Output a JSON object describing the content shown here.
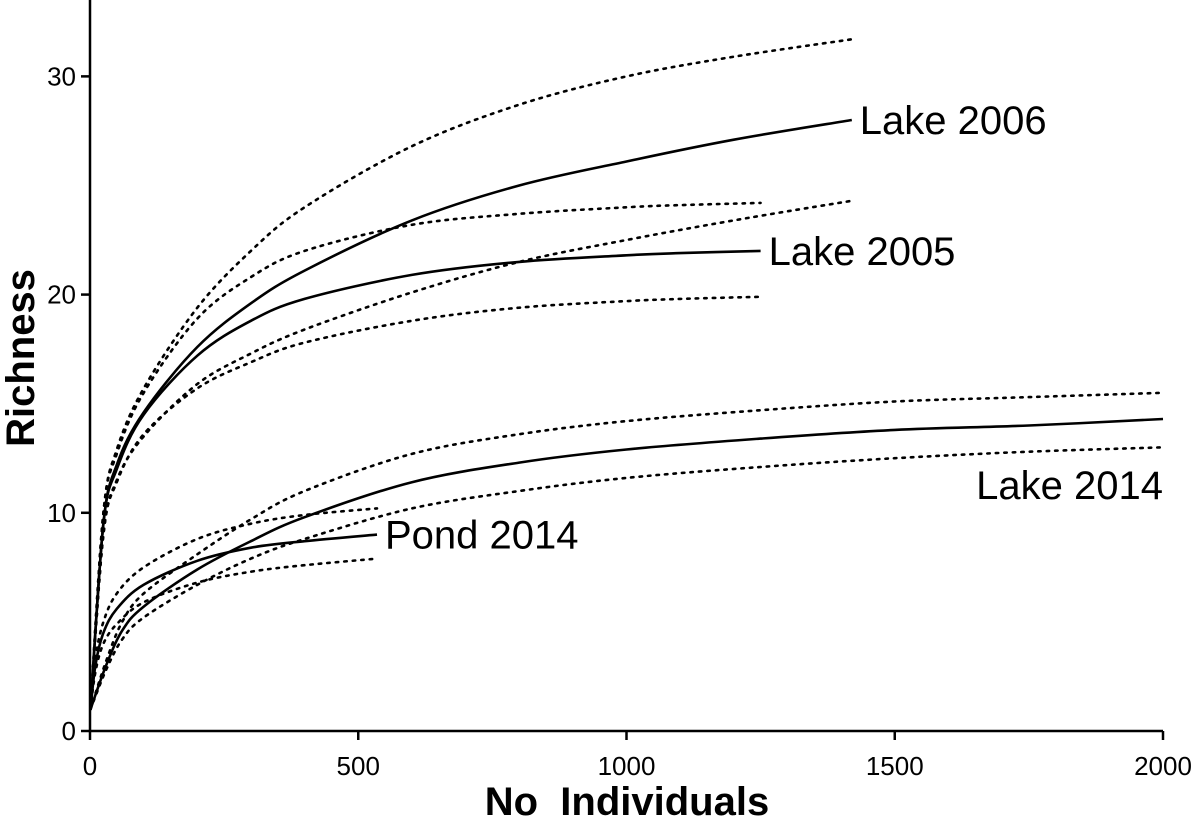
{
  "chart_data": {
    "type": "line",
    "title": "",
    "xlabel": "No  Individuals",
    "ylabel": "Richness",
    "xlim": [
      0,
      2000
    ],
    "ylim": [
      0,
      33.5
    ],
    "xticks": [
      0,
      500,
      1000,
      1500,
      2000
    ],
    "yticks": [
      0,
      10,
      20,
      30
    ],
    "grid": false,
    "series": [
      {
        "name": "Lake 2006",
        "x": [
          1,
          25,
          50,
          100,
          200,
          300,
          400,
          600,
          800,
          1000,
          1200,
          1420
        ],
        "y": [
          1,
          9.5,
          12.2,
          14.6,
          17.6,
          19.6,
          21.1,
          23.4,
          25.0,
          26.1,
          27.1,
          28.0
        ],
        "ci_upper": [
          1,
          10.0,
          12.9,
          15.7,
          19.4,
          22.0,
          24.0,
          26.8,
          28.7,
          30.0,
          30.9,
          31.7
        ],
        "ci_lower": [
          1,
          9.0,
          11.5,
          13.5,
          15.9,
          17.3,
          18.4,
          20.1,
          21.5,
          22.5,
          23.4,
          24.3
        ]
      },
      {
        "name": "Lake 2005",
        "x": [
          1,
          25,
          50,
          100,
          200,
          300,
          400,
          600,
          800,
          1000,
          1100,
          1250
        ],
        "y": [
          1,
          9.5,
          12.0,
          14.5,
          17.2,
          18.8,
          19.8,
          20.9,
          21.5,
          21.8,
          21.9,
          22.0
        ],
        "ci_upper": [
          1,
          10.0,
          12.7,
          15.5,
          18.9,
          20.8,
          22.0,
          23.2,
          23.7,
          24.0,
          24.1,
          24.2
        ],
        "ci_lower": [
          1,
          9.0,
          11.4,
          13.6,
          15.7,
          16.9,
          17.8,
          18.8,
          19.4,
          19.7,
          19.8,
          19.9
        ]
      },
      {
        "name": "Lake 2014",
        "x": [
          1,
          30,
          60,
          100,
          200,
          300,
          400,
          600,
          800,
          1000,
          1250,
          1500,
          1750,
          2000
        ],
        "y": [
          1,
          3.0,
          4.6,
          5.7,
          7.4,
          8.7,
          9.8,
          11.4,
          12.3,
          12.9,
          13.4,
          13.8,
          14.0,
          14.3
        ],
        "ci_upper": [
          1,
          3.2,
          5.0,
          6.3,
          8.1,
          9.7,
          11.0,
          12.7,
          13.6,
          14.2,
          14.7,
          15.1,
          15.3,
          15.5
        ],
        "ci_lower": [
          1,
          2.8,
          4.2,
          5.2,
          6.7,
          7.9,
          8.8,
          10.2,
          11.0,
          11.6,
          12.1,
          12.5,
          12.8,
          13.0
        ]
      },
      {
        "name": "Pond 2014",
        "x": [
          1,
          10,
          25,
          50,
          100,
          200,
          300,
          400,
          535
        ],
        "y": [
          1,
          3.0,
          4.5,
          5.6,
          6.7,
          7.8,
          8.4,
          8.7,
          9.0
        ],
        "ci_upper": [
          1,
          3.3,
          5.0,
          6.3,
          7.5,
          8.8,
          9.5,
          9.9,
          10.2
        ],
        "ci_lower": [
          1,
          2.7,
          4.0,
          4.9,
          5.9,
          6.8,
          7.3,
          7.6,
          7.9
        ]
      }
    ],
    "annotations": [
      "Lake 2006",
      "Lake 2005",
      "Lake 2014",
      "Pond 2014"
    ]
  }
}
